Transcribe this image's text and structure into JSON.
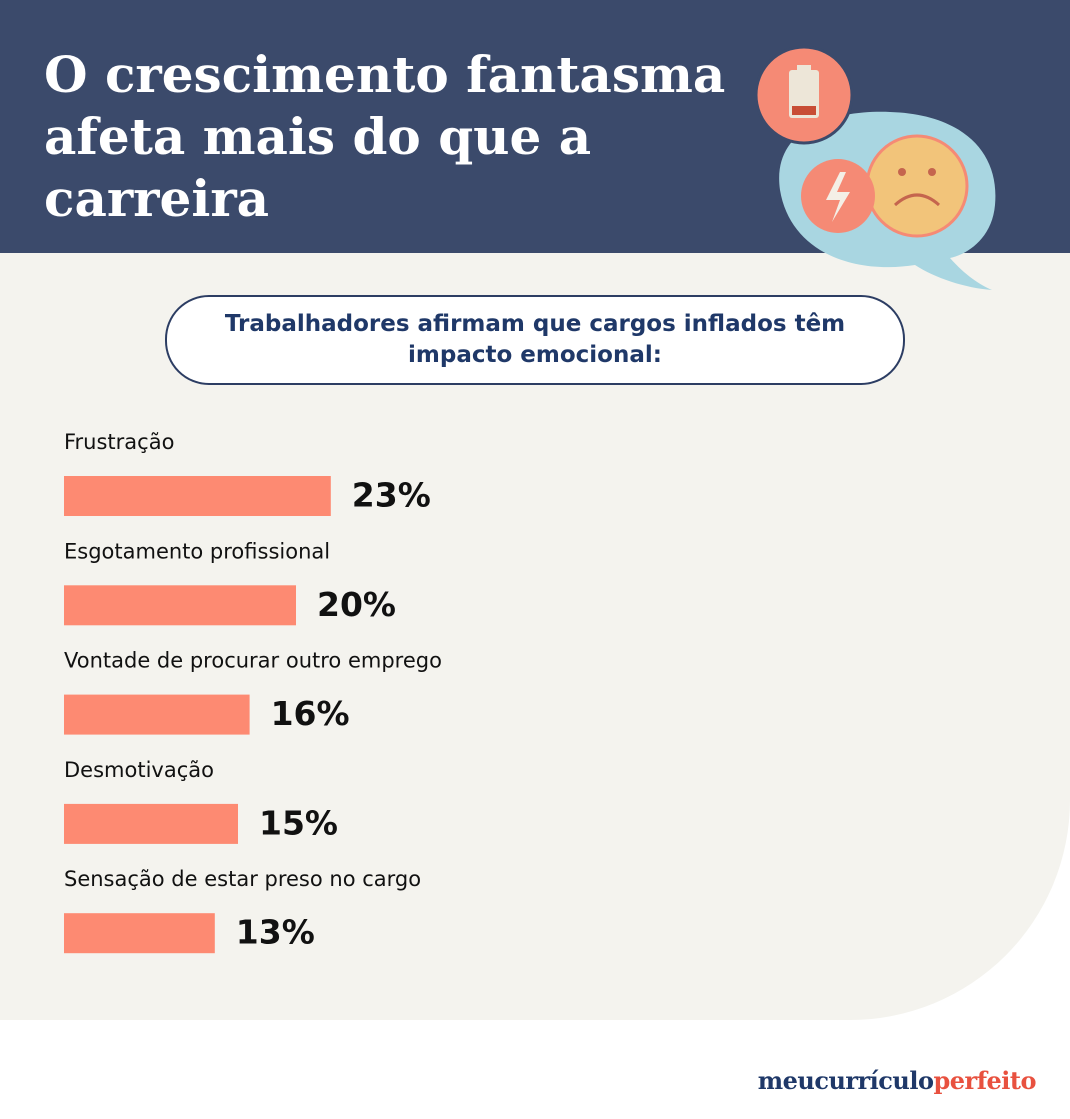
{
  "chart_data": {
    "type": "bar",
    "title": "O crescimento fantasma afeta mais do que a carreira",
    "subtitle": "Trabalhadores afirmam que cargos inflados têm impacto emocional:",
    "categories": [
      "Frustração",
      "Esgotamento profissional",
      "Vontade de procurar outro emprego",
      "Desmotivação",
      "Sensação de estar preso no cargo"
    ],
    "values": [
      23,
      20,
      16,
      15,
      13
    ],
    "value_labels": [
      "23%",
      "20%",
      "16%",
      "15%",
      "13%"
    ],
    "color": "#fd8a72"
  },
  "logo": {
    "first": "meucurrículo",
    "second": "perfeito"
  }
}
